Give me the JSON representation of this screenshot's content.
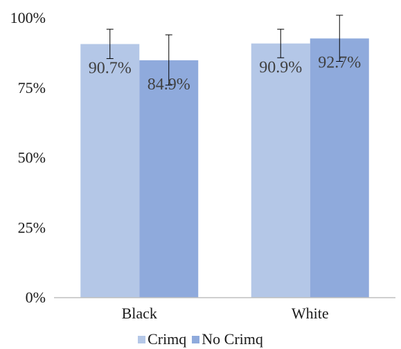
{
  "chart_data": {
    "type": "bar",
    "categories": [
      "Black",
      "White"
    ],
    "series": [
      {
        "name": "Crimq",
        "values": [
          90.7,
          90.9
        ],
        "labels": [
          "90.7%",
          "90.9%"
        ],
        "error_low": [
          85.5,
          85.8
        ],
        "error_high": [
          96.0,
          96.0
        ],
        "color": "#b4c7e7"
      },
      {
        "name": "No Crimq",
        "values": [
          84.9,
          92.7
        ],
        "labels": [
          "84.9%",
          "92.7%"
        ],
        "error_low": [
          76.0,
          84.5
        ],
        "error_high": [
          94.0,
          101.0
        ],
        "color": "#8faadc"
      }
    ],
    "y_ticks": [
      0,
      25,
      50,
      75,
      100
    ],
    "y_tick_labels": [
      "0%",
      "25%",
      "50%",
      "75%",
      "100%"
    ],
    "ylim": [
      0,
      100
    ],
    "title": "",
    "xlabel": "",
    "ylabel": "",
    "grid": false,
    "legend_position": "bottom",
    "axis_color": "#bfbfbf",
    "error_bar_color": "#000000",
    "text_color": "#404040"
  }
}
